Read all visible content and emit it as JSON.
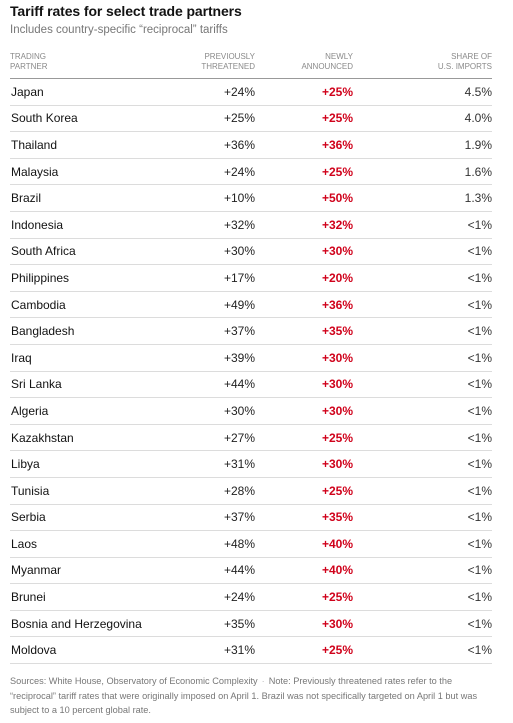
{
  "header": {
    "title": "Tariff rates for select trade partners",
    "subtitle": "Includes country-specific “reciprocal” tariffs"
  },
  "columns": [
    {
      "line1": "TRADING",
      "line2": "PARTNER"
    },
    {
      "line1": "PREVIOUSLY",
      "line2": "THREATENED"
    },
    {
      "line1": "NEWLY",
      "line2": "ANNOUNCED"
    },
    {
      "line1": "SHARE OF",
      "line2": "U.S. IMPORTS"
    }
  ],
  "chart_data": {
    "type": "table",
    "title": "Tariff rates for select trade partners",
    "subtitle": "Includes country-specific “reciprocal” tariffs",
    "headers": [
      "TRADING PARTNER",
      "PREVIOUSLY THREATENED",
      "NEWLY ANNOUNCED",
      "SHARE OF U.S. IMPORTS"
    ],
    "rows": [
      [
        "Japan",
        "+24%",
        "+25%",
        "4.5%"
      ],
      [
        "South Korea",
        "+25%",
        "+25%",
        "4.0%"
      ],
      [
        "Thailand",
        "+36%",
        "+36%",
        "1.9%"
      ],
      [
        "Malaysia",
        "+24%",
        "+25%",
        "1.6%"
      ],
      [
        "Brazil",
        "+10%",
        "+50%",
        "1.3%"
      ],
      [
        "Indonesia",
        "+32%",
        "+32%",
        "<1%"
      ],
      [
        "South Africa",
        "+30%",
        "+30%",
        "<1%"
      ],
      [
        "Philippines",
        "+17%",
        "+20%",
        "<1%"
      ],
      [
        "Cambodia",
        "+49%",
        "+36%",
        "<1%"
      ],
      [
        "Bangladesh",
        "+37%",
        "+35%",
        "<1%"
      ],
      [
        "Iraq",
        "+39%",
        "+30%",
        "<1%"
      ],
      [
        "Sri Lanka",
        "+44%",
        "+30%",
        "<1%"
      ],
      [
        "Algeria",
        "+30%",
        "+30%",
        "<1%"
      ],
      [
        "Kazakhstan",
        "+27%",
        "+25%",
        "<1%"
      ],
      [
        "Libya",
        "+31%",
        "+30%",
        "<1%"
      ],
      [
        "Tunisia",
        "+28%",
        "+25%",
        "<1%"
      ],
      [
        "Serbia",
        "+37%",
        "+35%",
        "<1%"
      ],
      [
        "Laos",
        "+48%",
        "+40%",
        "<1%"
      ],
      [
        "Myanmar",
        "+44%",
        "+40%",
        "<1%"
      ],
      [
        "Brunei",
        "+24%",
        "+25%",
        "<1%"
      ],
      [
        "Bosnia and Herzegovina",
        "+35%",
        "+30%",
        "<1%"
      ],
      [
        "Moldova",
        "+31%",
        "+25%",
        "<1%"
      ]
    ]
  },
  "footer": {
    "sources": "Sources: White House, Observatory of Economic Complexity",
    "separator": "·",
    "note": "Note: Previously threatened rates refer to the “reciprocal” tariff rates that were originally imposed on April 1. Brazil was not specifically targeted on April 1 but was subject to a 10 percent global rate."
  },
  "colors": {
    "accent_red": "#d0021b",
    "muted_text": "#777777"
  }
}
